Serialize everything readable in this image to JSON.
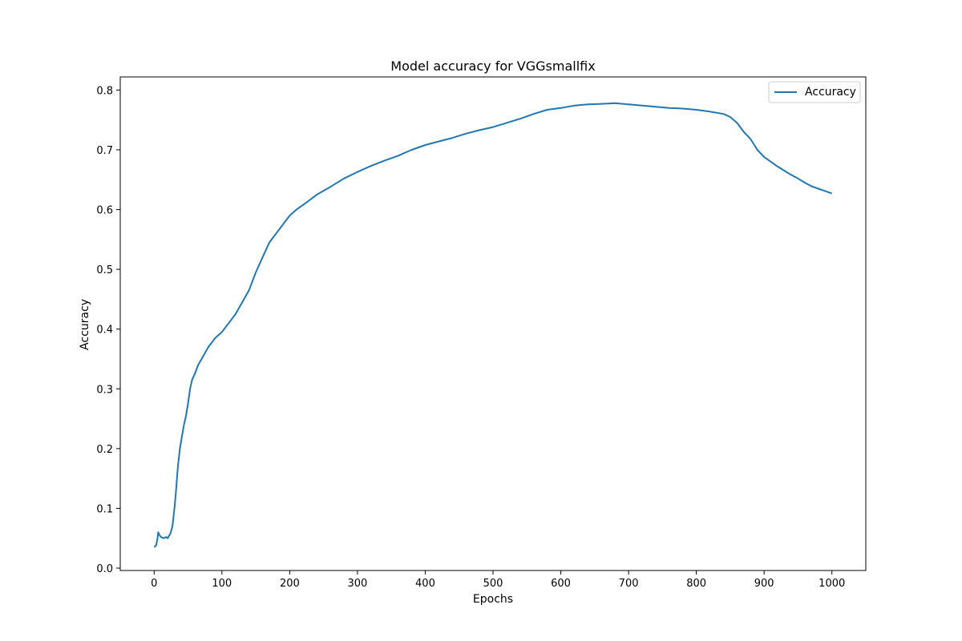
{
  "chart_data": {
    "type": "line",
    "title": "Model accuracy for VGGsmallfix",
    "xlabel": "Epochs",
    "ylabel": "Accuracy",
    "xlim": [
      -50,
      1050
    ],
    "ylim": [
      -0.004,
      0.822
    ],
    "xticks": [
      0,
      100,
      200,
      300,
      400,
      500,
      600,
      700,
      800,
      900,
      1000
    ],
    "yticks": [
      0.0,
      0.1,
      0.2,
      0.3,
      0.4,
      0.5,
      0.6,
      0.7,
      0.8
    ],
    "ytick_labels": [
      "0.0",
      "0.1",
      "0.2",
      "0.3",
      "0.4",
      "0.5",
      "0.6",
      "0.7",
      "0.8"
    ],
    "grid": false,
    "legend": {
      "position": "top-right"
    },
    "series": [
      {
        "name": "Accuracy",
        "color": "#1f77b4",
        "points": [
          [
            0,
            0.035
          ],
          [
            3,
            0.038
          ],
          [
            5,
            0.05
          ],
          [
            6,
            0.06
          ],
          [
            8,
            0.055
          ],
          [
            10,
            0.052
          ],
          [
            14,
            0.05
          ],
          [
            18,
            0.052
          ],
          [
            20,
            0.05
          ],
          [
            24,
            0.058
          ],
          [
            27,
            0.07
          ],
          [
            30,
            0.1
          ],
          [
            32,
            0.125
          ],
          [
            35,
            0.17
          ],
          [
            38,
            0.2
          ],
          [
            41,
            0.22
          ],
          [
            44,
            0.24
          ],
          [
            47,
            0.255
          ],
          [
            50,
            0.275
          ],
          [
            53,
            0.3
          ],
          [
            56,
            0.315
          ],
          [
            60,
            0.325
          ],
          [
            65,
            0.34
          ],
          [
            70,
            0.35
          ],
          [
            75,
            0.36
          ],
          [
            80,
            0.37
          ],
          [
            90,
            0.385
          ],
          [
            100,
            0.395
          ],
          [
            110,
            0.41
          ],
          [
            120,
            0.425
          ],
          [
            130,
            0.445
          ],
          [
            140,
            0.465
          ],
          [
            150,
            0.495
          ],
          [
            160,
            0.52
          ],
          [
            170,
            0.545
          ],
          [
            180,
            0.56
          ],
          [
            190,
            0.575
          ],
          [
            200,
            0.59
          ],
          [
            210,
            0.6
          ],
          [
            220,
            0.608
          ],
          [
            240,
            0.625
          ],
          [
            260,
            0.638
          ],
          [
            280,
            0.652
          ],
          [
            300,
            0.663
          ],
          [
            320,
            0.673
          ],
          [
            340,
            0.682
          ],
          [
            360,
            0.69
          ],
          [
            380,
            0.7
          ],
          [
            400,
            0.708
          ],
          [
            420,
            0.714
          ],
          [
            440,
            0.72
          ],
          [
            460,
            0.727
          ],
          [
            480,
            0.733
          ],
          [
            500,
            0.738
          ],
          [
            520,
            0.745
          ],
          [
            540,
            0.752
          ],
          [
            560,
            0.76
          ],
          [
            580,
            0.767
          ],
          [
            600,
            0.77
          ],
          [
            620,
            0.774
          ],
          [
            640,
            0.776
          ],
          [
            660,
            0.777
          ],
          [
            680,
            0.778
          ],
          [
            700,
            0.776
          ],
          [
            720,
            0.774
          ],
          [
            740,
            0.772
          ],
          [
            760,
            0.77
          ],
          [
            780,
            0.769
          ],
          [
            800,
            0.767
          ],
          [
            820,
            0.764
          ],
          [
            840,
            0.76
          ],
          [
            850,
            0.755
          ],
          [
            860,
            0.745
          ],
          [
            870,
            0.73
          ],
          [
            880,
            0.718
          ],
          [
            890,
            0.7
          ],
          [
            900,
            0.688
          ],
          [
            910,
            0.68
          ],
          [
            920,
            0.672
          ],
          [
            930,
            0.665
          ],
          [
            940,
            0.658
          ],
          [
            950,
            0.652
          ],
          [
            960,
            0.645
          ],
          [
            970,
            0.639
          ],
          [
            980,
            0.635
          ],
          [
            990,
            0.631
          ],
          [
            1000,
            0.627
          ]
        ]
      }
    ]
  }
}
